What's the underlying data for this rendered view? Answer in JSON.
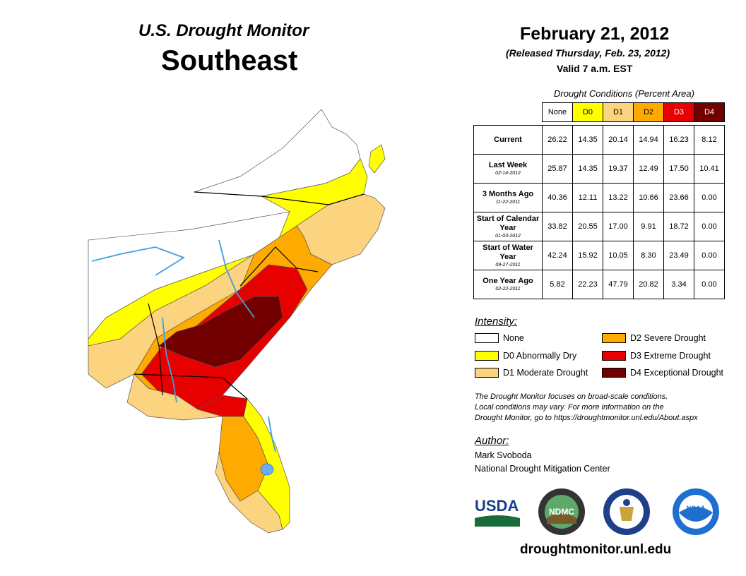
{
  "header": {
    "title_top": "U.S. Drought Monitor",
    "title_region": "Southeast",
    "date": "February 21, 2012",
    "released": "(Released Thursday, Feb. 23, 2012)",
    "valid": "Valid 7 a.m. EST"
  },
  "table": {
    "caption": "Drought Conditions (Percent Area)",
    "columns": [
      {
        "label": "None",
        "color": "#ffffff",
        "text_color": "#000000"
      },
      {
        "label": "D0",
        "color": "#ffff00",
        "text_color": "#000000"
      },
      {
        "label": "D1",
        "color": "#fcd37f",
        "text_color": "#000000"
      },
      {
        "label": "D2",
        "color": "#ffaa00",
        "text_color": "#000000"
      },
      {
        "label": "D3",
        "color": "#e60000",
        "text_color": "#ffffff"
      },
      {
        "label": "D4",
        "color": "#730000",
        "text_color": "#ffffff"
      }
    ],
    "rows": [
      {
        "label": "Current",
        "sublabel": "",
        "values": [
          "26.22",
          "14.35",
          "20.14",
          "14.94",
          "16.23",
          "8.12"
        ]
      },
      {
        "label": "Last Week",
        "sublabel": "02-14-2012",
        "values": [
          "25.87",
          "14.35",
          "19.37",
          "12.49",
          "17.50",
          "10.41"
        ]
      },
      {
        "label": "3 Months Ago",
        "sublabel": "11-22-2011",
        "values": [
          "40.36",
          "12.11",
          "13.22",
          "10.66",
          "23.66",
          "0.00"
        ]
      },
      {
        "label": "Start of Calendar Year",
        "sublabel": "01-03-2012",
        "values": [
          "33.82",
          "20.55",
          "17.00",
          "9.91",
          "18.72",
          "0.00"
        ]
      },
      {
        "label": "Start of Water Year",
        "sublabel": "09-27-2011",
        "values": [
          "42.24",
          "15.92",
          "10.05",
          "8.30",
          "23.49",
          "0.00"
        ]
      },
      {
        "label": "One Year Ago",
        "sublabel": "02-22-2011",
        "values": [
          "5.82",
          "22.23",
          "47.79",
          "20.82",
          "3.34",
          "0.00"
        ]
      }
    ]
  },
  "legend": {
    "title": "Intensity:",
    "items": [
      {
        "label": "None",
        "color": "#ffffff"
      },
      {
        "label": "D0 Abnormally Dry",
        "color": "#ffff00"
      },
      {
        "label": "D1 Moderate Drought",
        "color": "#fcd37f"
      },
      {
        "label": "D2 Severe Drought",
        "color": "#ffaa00"
      },
      {
        "label": "D3 Extreme Drought",
        "color": "#e60000"
      },
      {
        "label": "D4 Exceptional Drought",
        "color": "#730000"
      }
    ]
  },
  "note": {
    "line1": "The Drought Monitor focuses on broad-scale conditions.",
    "line2": "Local conditions may vary. For more information on the",
    "line3": "Drought Monitor, go to https://droughtmonitor.unl.edu/About.aspx"
  },
  "author": {
    "title": "Author:",
    "name": "Mark Svoboda",
    "org": "National Drought Mitigation Center"
  },
  "logos": {
    "usda": "USDA",
    "ndmc": "NDMC",
    "noaa": "NOAA"
  },
  "footer": {
    "url": "droughtmonitor.unl.edu"
  }
}
